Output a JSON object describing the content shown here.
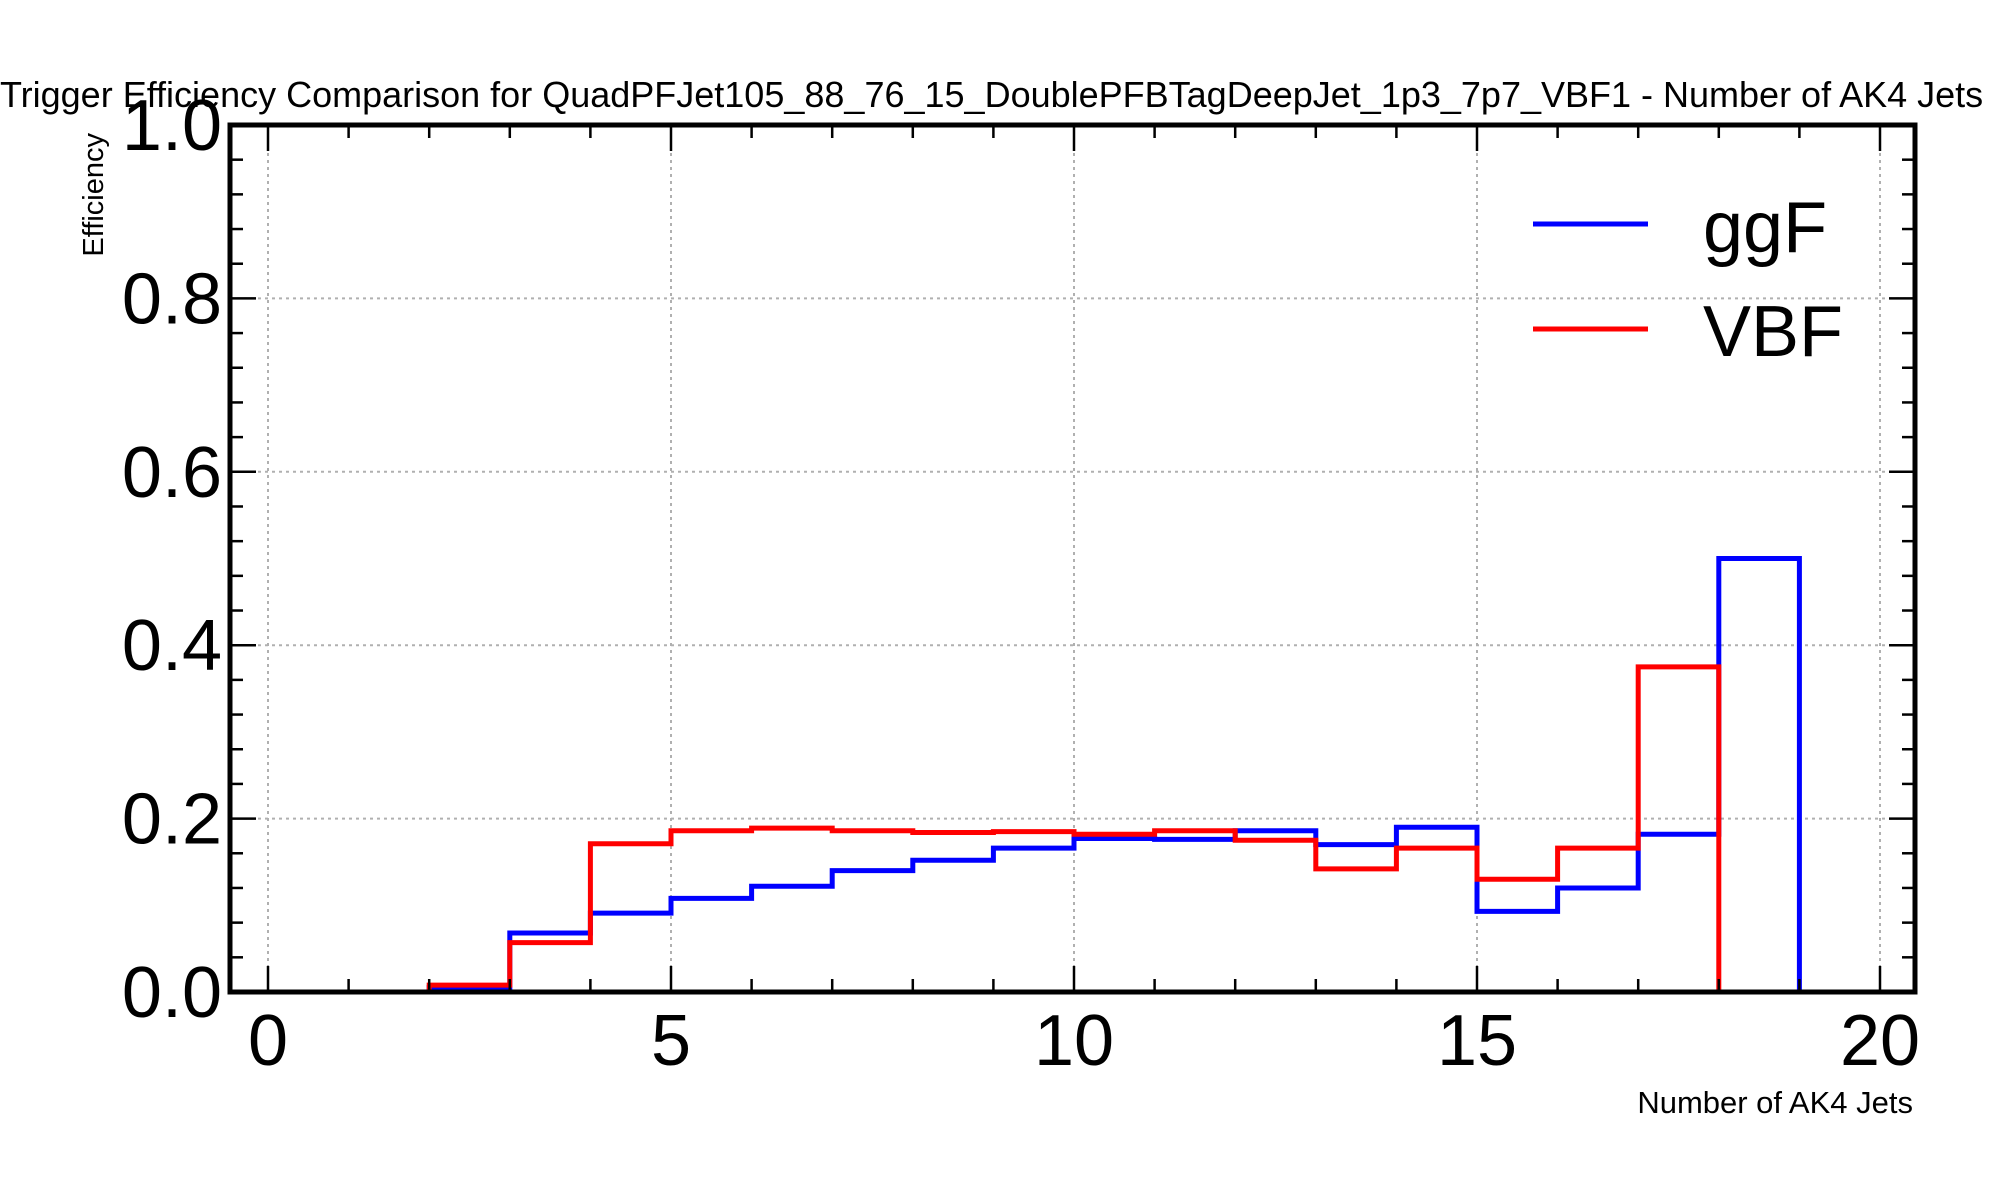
{
  "chart_data": {
    "type": "histogram-step",
    "title": "Trigger Efficiency Comparison for QuadPFJet105_88_76_15_DoublePFBTagDeepJet_1p3_7p7_VBF1 - Number of AK4 Jets",
    "xlabel": "Number of AK4 Jets",
    "ylabel": "Efficiency",
    "xlim": [
      -0.5,
      20
    ],
    "ylim": [
      0.0,
      1.0
    ],
    "x_ticks": [
      0,
      5,
      10,
      15,
      20
    ],
    "y_ticks": [
      0.0,
      0.2,
      0.4,
      0.6,
      0.8,
      1.0
    ],
    "y_tick_labels": [
      "0.0",
      "0.2",
      "0.4",
      "0.6",
      "0.8",
      "1.0"
    ],
    "grid": true,
    "legend_position": "top-right",
    "bin_edges": [
      0,
      1,
      2,
      3,
      4,
      5,
      6,
      7,
      8,
      9,
      10,
      11,
      12,
      13,
      14,
      15,
      16,
      17,
      18,
      19
    ],
    "series": [
      {
        "name": "ggF",
        "color": "#0000ff",
        "values": [
          0,
          0,
          0.005,
          0.068,
          0.091,
          0.108,
          0.122,
          0.14,
          0.152,
          0.166,
          0.177,
          0.176,
          0.186,
          0.17,
          0.19,
          0.093,
          0.12,
          0.182,
          0.5
        ]
      },
      {
        "name": "VBF",
        "color": "#ff0000",
        "values": [
          0,
          0,
          0.008,
          0.057,
          0.171,
          0.186,
          0.189,
          0.186,
          0.184,
          0.185,
          0.182,
          0.186,
          0.175,
          0.142,
          0.166,
          0.13,
          0.166,
          0.375,
          0
        ]
      }
    ]
  }
}
